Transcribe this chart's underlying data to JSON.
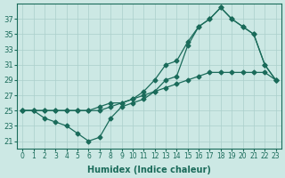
{
  "xlabel": "Humidex (Indice chaleur)",
  "background_color": "#cce8e4",
  "grid_color": "#aacfcb",
  "line_color": "#1a6b5a",
  "xlim": [
    -0.5,
    23.5
  ],
  "ylim": [
    20,
    39
  ],
  "yticks": [
    21,
    23,
    25,
    27,
    29,
    31,
    33,
    35,
    37
  ],
  "xticks": [
    0,
    1,
    2,
    3,
    4,
    5,
    6,
    7,
    8,
    9,
    10,
    11,
    12,
    13,
    14,
    15,
    16,
    17,
    18,
    19,
    20,
    21,
    22,
    23
  ],
  "line1_x": [
    0,
    1,
    2,
    3,
    4,
    5,
    6,
    7,
    8,
    9,
    10,
    11,
    12,
    13,
    14,
    15,
    16,
    17,
    18,
    19,
    20,
    21,
    22,
    23
  ],
  "line1_y": [
    25,
    25,
    24,
    23.5,
    23,
    22,
    21,
    21.5,
    24,
    25.5,
    26,
    26.5,
    27.5,
    29,
    29.5,
    33.5,
    36,
    37,
    38.5,
    37,
    36,
    35,
    31,
    29
  ],
  "line2_x": [
    0,
    1,
    2,
    3,
    4,
    5,
    6,
    7,
    8,
    9,
    10,
    11,
    12,
    13,
    14,
    15,
    16,
    17,
    18,
    19,
    20,
    21,
    22,
    23
  ],
  "line2_y": [
    25,
    25,
    25,
    25,
    25,
    25,
    25,
    25.5,
    26,
    26,
    26.5,
    27,
    27.5,
    28,
    28.5,
    29,
    29.5,
    30,
    30,
    30,
    30,
    30,
    30,
    29
  ],
  "line3_x": [
    0,
    1,
    2,
    3,
    4,
    5,
    6,
    7,
    8,
    9,
    10,
    11,
    12,
    13,
    14,
    15,
    16,
    17,
    18,
    19,
    20,
    21,
    22,
    23
  ],
  "line3_y": [
    25,
    25,
    25,
    25,
    25,
    25,
    25,
    25,
    25.5,
    26,
    26.5,
    27.5,
    29,
    31,
    31.5,
    34,
    36,
    37,
    38.5,
    37,
    36,
    35,
    31,
    29
  ]
}
